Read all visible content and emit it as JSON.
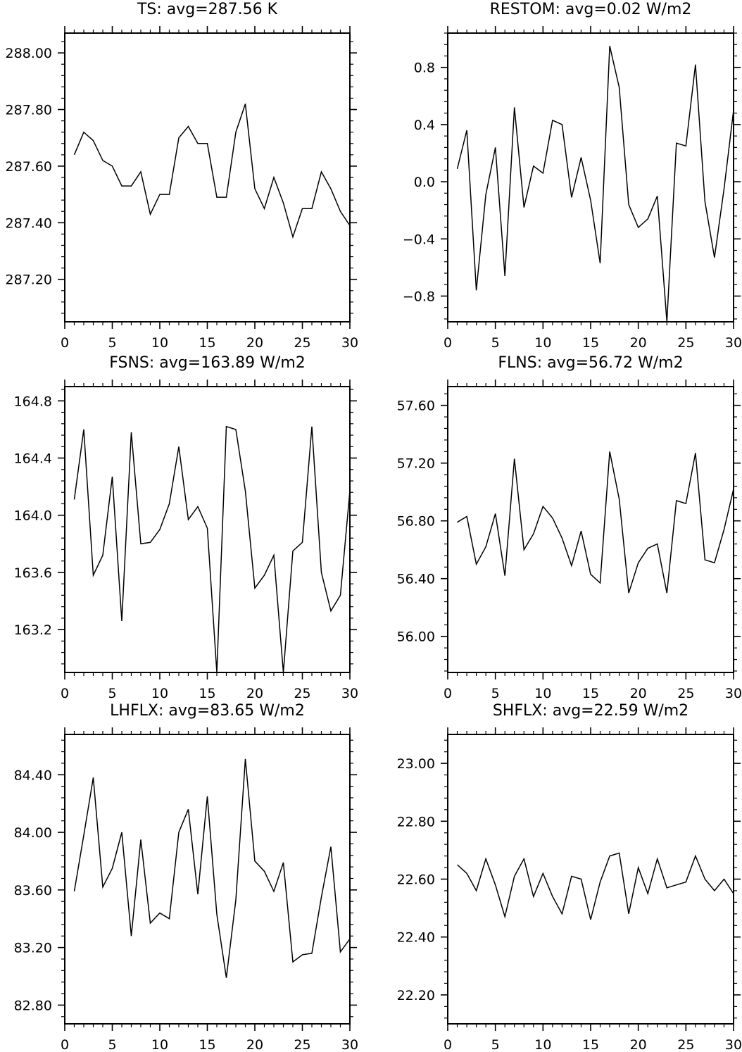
{
  "chart_data": [
    {
      "type": "line",
      "title": "TS: avg=287.56 K",
      "xlim": [
        0,
        30
      ],
      "ylim": [
        287.05,
        288.07
      ],
      "xticks": [
        0,
        5,
        10,
        15,
        20,
        25,
        30
      ],
      "xtick_labels": [
        "0",
        "5",
        "10",
        "15",
        "20",
        "25",
        "30"
      ],
      "yticks": [
        287.2,
        287.4,
        287.6,
        287.8,
        288.0
      ],
      "ytick_labels": [
        "287.20",
        "287.40",
        "287.60",
        "287.80",
        "288.00"
      ],
      "x": [
        1,
        2,
        3,
        4,
        5,
        6,
        7,
        8,
        9,
        10,
        11,
        12,
        13,
        14,
        15,
        16,
        17,
        18,
        19,
        20,
        21,
        22,
        23,
        24,
        25,
        26,
        27,
        28,
        29,
        30
      ],
      "values": [
        287.64,
        287.72,
        287.69,
        287.62,
        287.6,
        287.53,
        287.53,
        287.58,
        287.43,
        287.5,
        287.5,
        287.7,
        287.74,
        287.68,
        287.68,
        287.49,
        287.49,
        287.72,
        287.82,
        287.52,
        287.45,
        287.56,
        287.47,
        287.35,
        287.45,
        287.45,
        287.58,
        287.52,
        287.44,
        287.39
      ],
      "grid": false
    },
    {
      "type": "line",
      "title": "RESTOM: avg=0.02 W/m2",
      "xlim": [
        0,
        30
      ],
      "ylim": [
        -0.98,
        1.04
      ],
      "xticks": [
        0,
        5,
        10,
        15,
        20,
        25,
        30
      ],
      "xtick_labels": [
        "0",
        "5",
        "10",
        "15",
        "20",
        "25",
        "30"
      ],
      "yticks": [
        -0.8,
        -0.4,
        0.0,
        0.4,
        0.8
      ],
      "ytick_labels": [
        "−0.8",
        "−0.4",
        "0.0",
        "0.4",
        "0.8"
      ],
      "x": [
        1,
        2,
        3,
        4,
        5,
        6,
        7,
        8,
        9,
        10,
        11,
        12,
        13,
        14,
        15,
        16,
        17,
        18,
        19,
        20,
        21,
        22,
        23,
        24,
        25,
        26,
        27,
        28,
        29,
        30
      ],
      "values": [
        0.09,
        0.36,
        -0.76,
        -0.09,
        0.24,
        -0.66,
        0.52,
        -0.18,
        0.11,
        0.06,
        0.43,
        0.4,
        -0.11,
        0.17,
        -0.13,
        -0.57,
        0.95,
        0.66,
        -0.16,
        -0.32,
        -0.26,
        -0.1,
        -0.98,
        0.27,
        0.25,
        0.82,
        -0.14,
        -0.53,
        -0.05,
        0.5
      ],
      "grid": false
    },
    {
      "type": "line",
      "title": "FSNS: avg=163.89 W/m2",
      "xlim": [
        0,
        30
      ],
      "ylim": [
        162.9,
        164.9
      ],
      "xticks": [
        0,
        5,
        10,
        15,
        20,
        25,
        30
      ],
      "xtick_labels": [
        "0",
        "5",
        "10",
        "15",
        "20",
        "25",
        "30"
      ],
      "yticks": [
        163.2,
        163.6,
        164.0,
        164.4,
        164.8
      ],
      "ytick_labels": [
        "163.2",
        "163.6",
        "164.0",
        "164.4",
        "164.8"
      ],
      "x": [
        1,
        2,
        3,
        4,
        5,
        6,
        7,
        8,
        9,
        10,
        11,
        12,
        13,
        14,
        15,
        16,
        17,
        18,
        19,
        20,
        21,
        22,
        23,
        24,
        25,
        26,
        27,
        28,
        29,
        30
      ],
      "values": [
        164.11,
        164.6,
        163.58,
        163.72,
        164.27,
        163.26,
        164.58,
        163.8,
        163.81,
        163.9,
        164.08,
        164.48,
        163.97,
        164.06,
        163.91,
        162.9,
        164.62,
        164.6,
        164.17,
        163.49,
        163.58,
        163.72,
        162.9,
        163.75,
        163.81,
        164.62,
        163.6,
        163.33,
        163.44,
        164.17
      ],
      "grid": false
    },
    {
      "type": "line",
      "title": "FLNS: avg=56.72 W/m2",
      "xlim": [
        0,
        30
      ],
      "ylim": [
        55.75,
        57.73
      ],
      "xticks": [
        0,
        5,
        10,
        15,
        20,
        25,
        30
      ],
      "xtick_labels": [
        "0",
        "5",
        "10",
        "15",
        "20",
        "25",
        "30"
      ],
      "yticks": [
        56.0,
        56.4,
        56.8,
        57.2,
        57.6
      ],
      "ytick_labels": [
        "56.00",
        "56.40",
        "56.80",
        "57.20",
        "57.60"
      ],
      "x": [
        1,
        2,
        3,
        4,
        5,
        6,
        7,
        8,
        9,
        10,
        11,
        12,
        13,
        14,
        15,
        16,
        17,
        18,
        19,
        20,
        21,
        22,
        23,
        24,
        25,
        26,
        27,
        28,
        29,
        30
      ],
      "values": [
        56.79,
        56.83,
        56.5,
        56.62,
        56.85,
        56.42,
        57.23,
        56.6,
        56.71,
        56.9,
        56.82,
        56.68,
        56.49,
        56.73,
        56.43,
        56.37,
        57.28,
        56.95,
        56.3,
        56.51,
        56.61,
        56.64,
        56.3,
        56.94,
        56.92,
        57.27,
        56.53,
        56.51,
        56.74,
        57.02
      ],
      "grid": false
    },
    {
      "type": "line",
      "title": "LHFLX: avg=83.65 W/m2",
      "xlim": [
        0,
        30
      ],
      "ylim": [
        82.67,
        84.68
      ],
      "xticks": [
        0,
        5,
        10,
        15,
        20,
        25,
        30
      ],
      "xtick_labels": [
        "0",
        "5",
        "10",
        "15",
        "20",
        "25",
        "30"
      ],
      "yticks": [
        82.8,
        83.2,
        83.6,
        84.0,
        84.4
      ],
      "ytick_labels": [
        "82.80",
        "83.20",
        "83.60",
        "84.00",
        "84.40"
      ],
      "x": [
        1,
        2,
        3,
        4,
        5,
        6,
        7,
        8,
        9,
        10,
        11,
        12,
        13,
        14,
        15,
        16,
        17,
        18,
        19,
        20,
        21,
        22,
        23,
        24,
        25,
        26,
        27,
        28,
        29,
        30
      ],
      "values": [
        83.59,
        83.98,
        84.38,
        83.62,
        83.75,
        84.0,
        83.28,
        83.95,
        83.37,
        83.44,
        83.4,
        84.0,
        84.16,
        83.57,
        84.25,
        83.43,
        82.99,
        83.53,
        84.51,
        83.8,
        83.73,
        83.59,
        83.79,
        83.1,
        83.15,
        83.16,
        83.55,
        83.9,
        83.17,
        83.26
      ],
      "grid": false
    },
    {
      "type": "line",
      "title": "SHFLX: avg=22.59 W/m2",
      "xlim": [
        0,
        30
      ],
      "ylim": [
        22.1,
        23.1
      ],
      "xticks": [
        0,
        5,
        10,
        15,
        20,
        25,
        30
      ],
      "xtick_labels": [
        "0",
        "5",
        "10",
        "15",
        "20",
        "25",
        "30"
      ],
      "yticks": [
        22.2,
        22.4,
        22.6,
        22.8,
        23.0
      ],
      "ytick_labels": [
        "22.20",
        "22.40",
        "22.60",
        "22.80",
        "23.00"
      ],
      "x": [
        1,
        2,
        3,
        4,
        5,
        6,
        7,
        8,
        9,
        10,
        11,
        12,
        13,
        14,
        15,
        16,
        17,
        18,
        19,
        20,
        21,
        22,
        23,
        24,
        25,
        26,
        27,
        28,
        29,
        30
      ],
      "values": [
        22.65,
        22.62,
        22.56,
        22.67,
        22.58,
        22.47,
        22.61,
        22.67,
        22.54,
        22.62,
        22.54,
        22.48,
        22.61,
        22.6,
        22.46,
        22.59,
        22.68,
        22.69,
        22.48,
        22.64,
        22.55,
        22.67,
        22.57,
        22.58,
        22.59,
        22.68,
        22.6,
        22.56,
        22.6,
        22.55
      ],
      "grid": false
    }
  ]
}
